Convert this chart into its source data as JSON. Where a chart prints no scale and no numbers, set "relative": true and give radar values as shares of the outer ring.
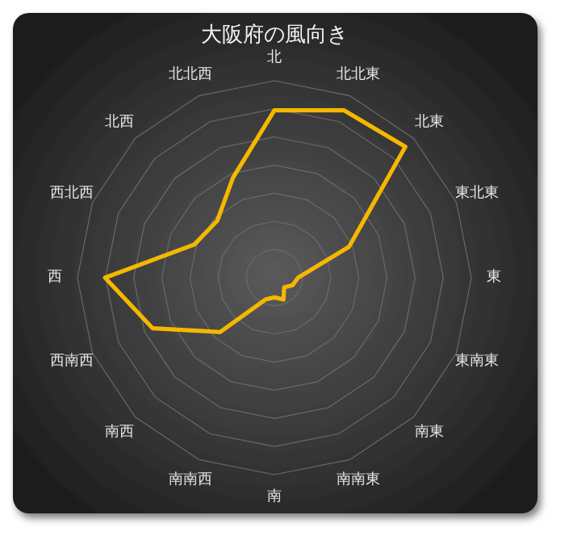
{
  "chart_data": {
    "type": "radar",
    "title": "大阪府の風向き",
    "categories": [
      "北",
      "北北東",
      "北東",
      "東北東",
      "東",
      "東南東",
      "南東",
      "南南東",
      "南",
      "南南西",
      "南西",
      "西南西",
      "西",
      "西北西",
      "北西",
      "北北西"
    ],
    "relative": true,
    "grid": true,
    "series": [
      {
        "color": "#f5b800",
        "values": [
          0.85,
          0.92,
          0.94,
          0.41,
          0.12,
          0.1,
          0.07,
          0.12,
          0.1,
          0.12,
          0.39,
          0.67,
          0.86,
          0.44,
          0.41,
          0.55
        ]
      }
    ]
  }
}
